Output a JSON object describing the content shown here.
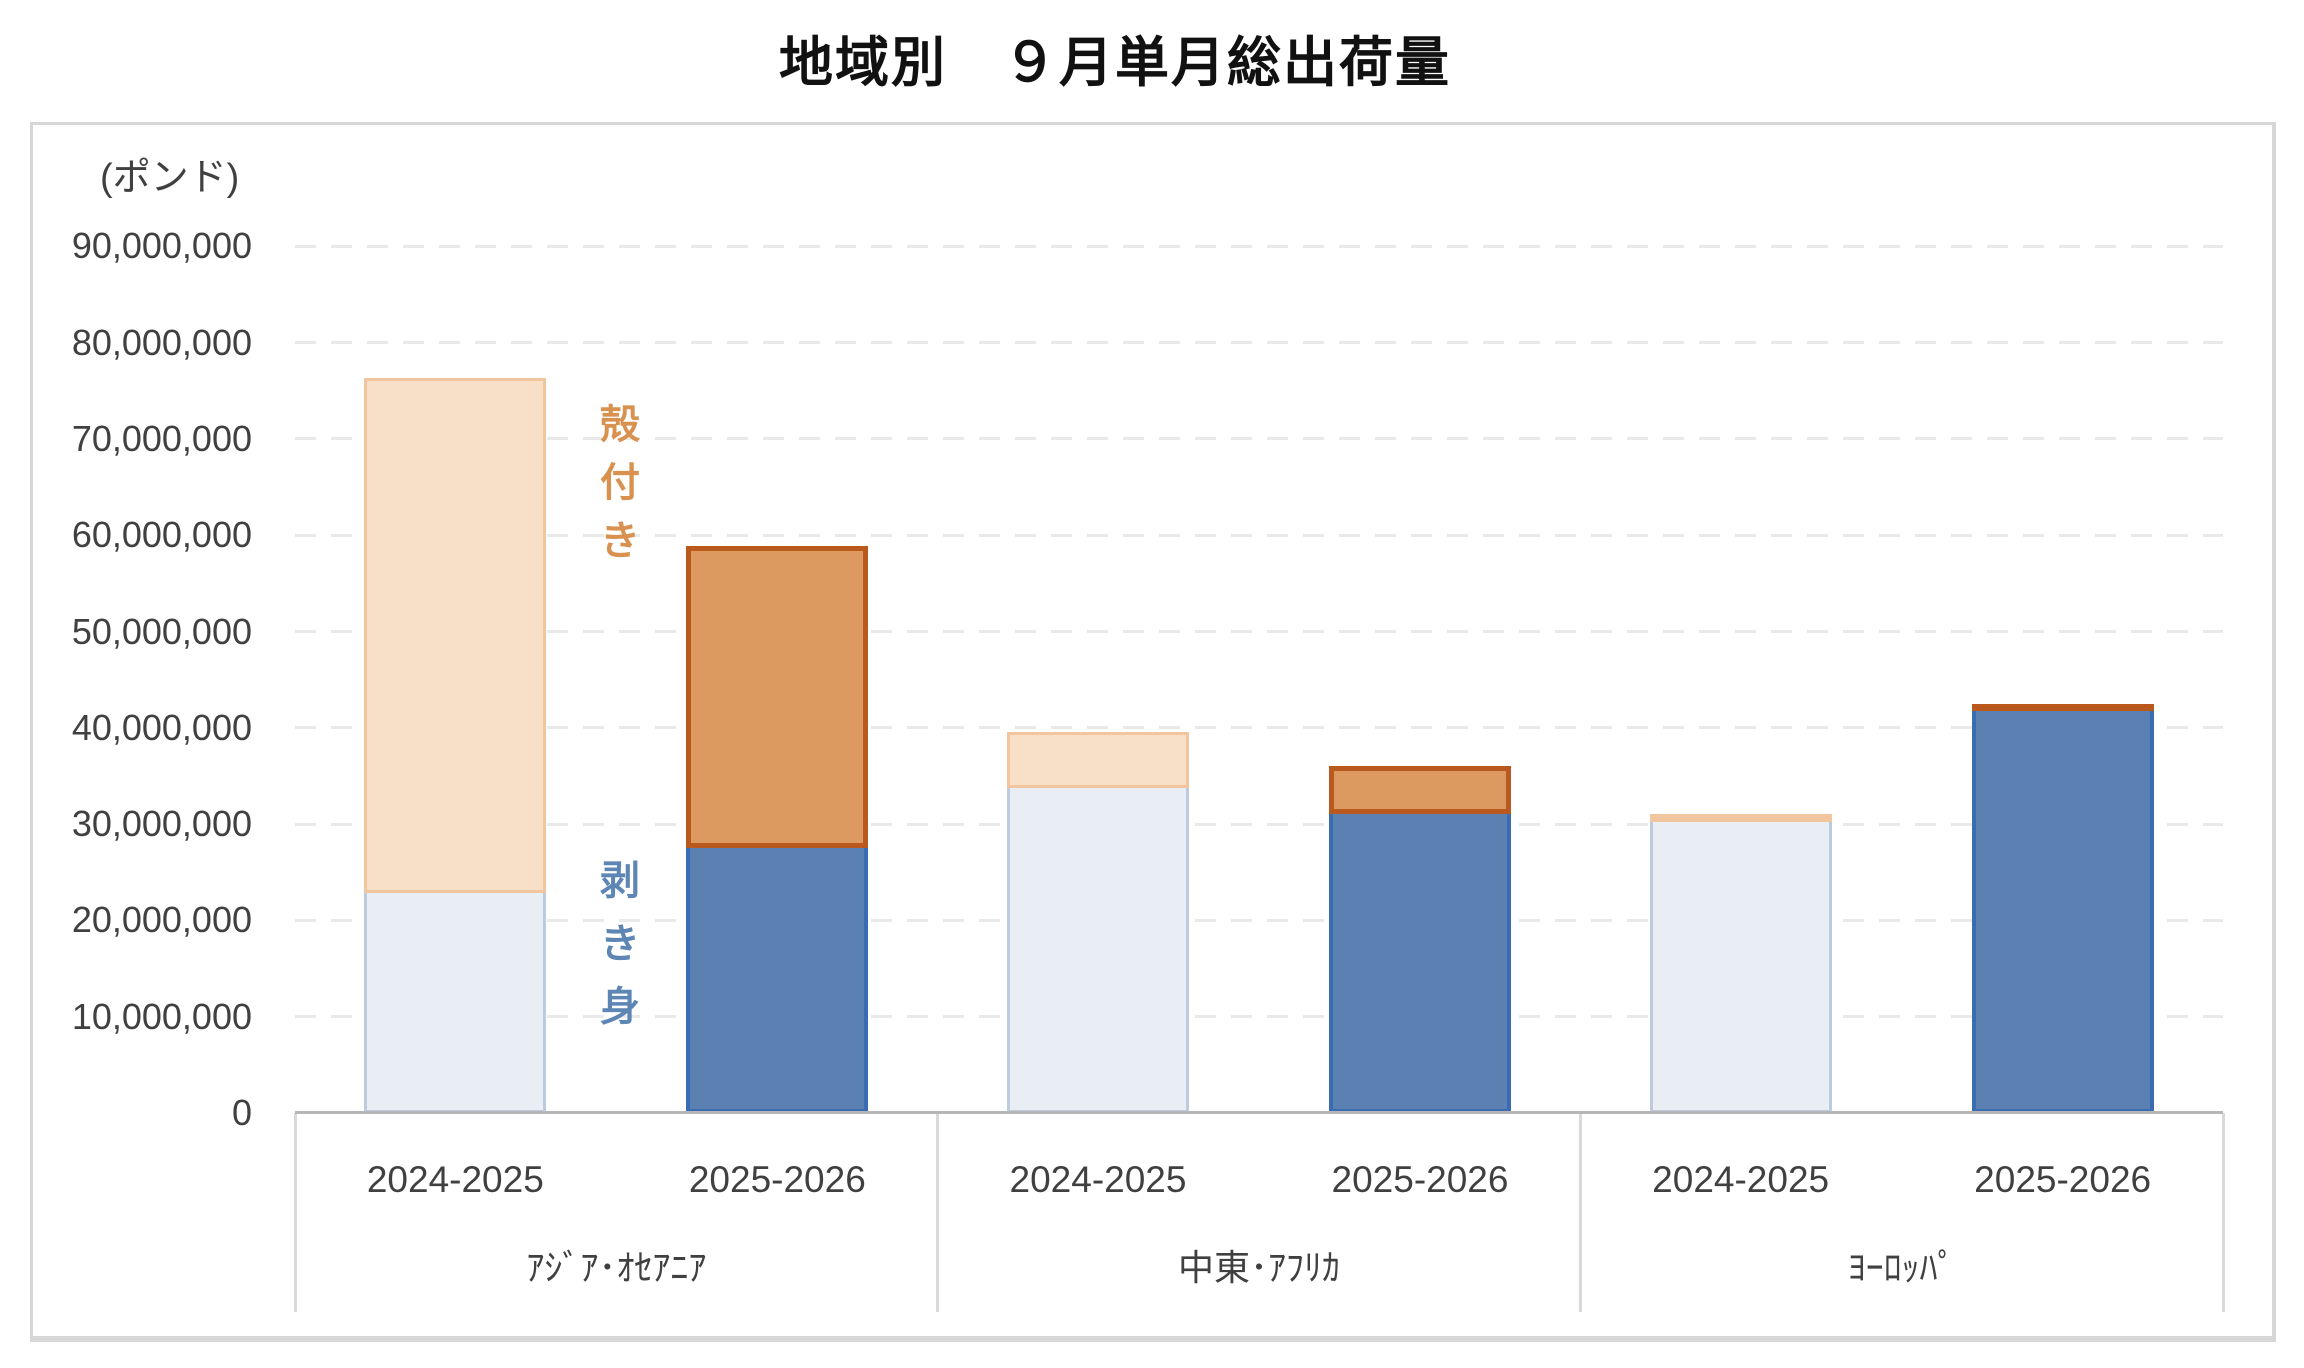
{
  "title": "地域別　９月単月総出荷量",
  "axis": {
    "unit_label": "(ポンド)",
    "ytick_labels": [
      "0",
      "10,000,000",
      "20,000,000",
      "30,000,000",
      "40,000,000",
      "50,000,000",
      "60,000,000",
      "70,000,000",
      "80,000,000",
      "90,000,000"
    ],
    "text_color": "#404040",
    "gridline_color": "#e9e9e9",
    "baseline_color": "#b7b7b7",
    "divider_color": "#d9d9d9",
    "frame_color": "#d7d7d7"
  },
  "series_annotations": [
    {
      "id": "in-shell",
      "text": "殻付き",
      "color": "#d9914f"
    },
    {
      "id": "shelled-meat",
      "text": "剥き身",
      "color": "#5e86b5"
    }
  ],
  "chart_data": {
    "type": "bar",
    "stacked": true,
    "orientation": "vertical",
    "title": "地域別　９月単月総出荷量",
    "ylabel": "(ポンド)",
    "ylim": [
      0,
      90000000
    ],
    "ytick_step": 10000000,
    "grid": "horizontal-dashed",
    "legend_position": "inline vertical text between first two bars: 殻付き (orange, top segments) / 剥き身 (blue, bottom segments)",
    "groups": [
      "ｱｼﾞｱ･ｵｾｱﾆｱ",
      "中東･ｱﾌﾘｶ",
      "ﾖｰﾛｯﾊﾟ"
    ],
    "years": [
      "2024-2025",
      "2025-2026"
    ],
    "series": [
      {
        "key": "shelled_meat",
        "label": "剥き身",
        "stack_order": 0,
        "values": [
          22800000,
          27500000,
          33700000,
          31000000,
          30200000,
          41700000
        ]
      },
      {
        "key": "in_shell",
        "label": "殻付き",
        "stack_order": 1,
        "values": [
          53500000,
          31400000,
          5900000,
          5000000,
          900000,
          800000
        ]
      }
    ],
    "bars": [
      {
        "group": "ｱｼﾞｱ･ｵｾｱﾆｱ",
        "year": "2024-2025",
        "style": "muted",
        "shelled_meat": 22800000,
        "in_shell": 53500000,
        "total": 76300000
      },
      {
        "group": "ｱｼﾞｱ･ｵｾｱﾆｱ",
        "year": "2025-2026",
        "style": "vivid",
        "shelled_meat": 27500000,
        "in_shell": 31400000,
        "total": 58900000
      },
      {
        "group": "中東･ｱﾌﾘｶ",
        "year": "2024-2025",
        "style": "muted",
        "shelled_meat": 33700000,
        "in_shell": 5900000,
        "total": 39600000
      },
      {
        "group": "中東･ｱﾌﾘｶ",
        "year": "2025-2026",
        "style": "vivid",
        "shelled_meat": 31000000,
        "in_shell": 5000000,
        "total": 36000000
      },
      {
        "group": "ﾖｰﾛｯﾊﾟ",
        "year": "2024-2025",
        "style": "muted",
        "shelled_meat": 30200000,
        "in_shell": 900000,
        "total": 31100000
      },
      {
        "group": "ﾖｰﾛｯﾊﾟ",
        "year": "2025-2026",
        "style": "vivid",
        "shelled_meat": 41700000,
        "in_shell": 800000,
        "total": 42500000
      }
    ],
    "colors": {
      "shelled_meat": {
        "muted_fill": "#e9eef4",
        "muted_border": "#bccbdf",
        "vivid_fill": "#5a81b1",
        "vivid_border": "#3a6cb4"
      },
      "in_shell": {
        "muted_fill": "#f8dfc8",
        "muted_border": "#f1c59e",
        "vivid_fill": "#dc9a60",
        "vivid_border": "#ba591e"
      }
    }
  }
}
